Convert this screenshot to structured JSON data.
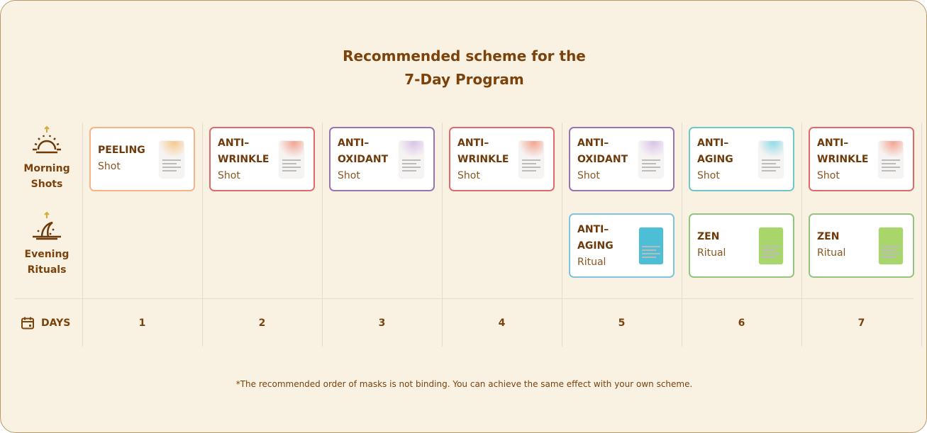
{
  "title": {
    "line1": "Recommended scheme for the",
    "line2": "7-Day Program"
  },
  "rows": {
    "morning": {
      "line1": "Morning",
      "line2": "Shots",
      "icon": "sunrise-icon"
    },
    "evening": {
      "line1": "Evening",
      "line2": "Rituals",
      "icon": "moonrise-icon"
    }
  },
  "days_label": "DAYS",
  "days": [
    "1",
    "2",
    "3",
    "4",
    "5",
    "6",
    "7"
  ],
  "morning": [
    {
      "l1": "PEELING",
      "l2": "",
      "kind": "Shot",
      "color": "#f7b488",
      "pack": "#f6c98e"
    },
    {
      "l1": "ANTI–",
      "l2": "WRINKLE",
      "kind": "Shot",
      "color": "#e06a6a",
      "pack": "#f3a592"
    },
    {
      "l1": "ANTI–",
      "l2": "OXIDANT",
      "kind": "Shot",
      "color": "#9a74b0",
      "pack": "#d9c3ea"
    },
    {
      "l1": "ANTI–",
      "l2": "WRINKLE",
      "kind": "Shot",
      "color": "#e06a6a",
      "pack": "#f3a592"
    },
    {
      "l1": "ANTI–",
      "l2": "OXIDANT",
      "kind": "Shot",
      "color": "#9a74b0",
      "pack": "#d9c3ea"
    },
    {
      "l1": "ANTI–",
      "l2": "AGING",
      "kind": "Shot",
      "color": "#6fc8c8",
      "pack": "#92dbe8"
    },
    {
      "l1": "ANTI–",
      "l2": "WRINKLE",
      "kind": "Shot",
      "color": "#e06a6a",
      "pack": "#f3a592"
    }
  ],
  "evening": [
    null,
    null,
    null,
    null,
    {
      "l1": "ANTI–",
      "l2": "AGING",
      "kind": "Ritual",
      "color": "#7ec3e0",
      "pack": "#4cbfd6",
      "solid": true
    },
    {
      "l1": "ZEN",
      "l2": "",
      "kind": "Ritual",
      "color": "#92c57e",
      "pack": "#a8d66a",
      "solid": true
    },
    {
      "l1": "ZEN",
      "l2": "",
      "kind": "Ritual",
      "color": "#92c57e",
      "pack": "#a8d66a",
      "solid": true
    }
  ],
  "footnote": "*The recommended order of masks is not binding. You can achieve the same effect with your own scheme."
}
